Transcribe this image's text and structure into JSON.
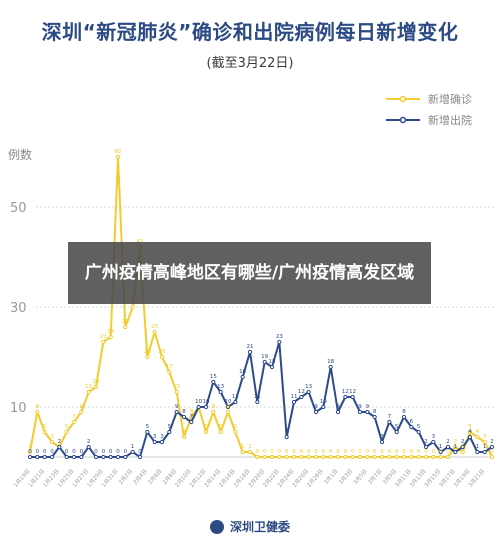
{
  "chart_data": {
    "type": "line",
    "title": "深圳“新冠肺炎”确诊和出院病例每日新增变化",
    "subtitle": "(截至3月22日)",
    "ylabel": "例数",
    "ylim": [
      0,
      65
    ],
    "yticks": [
      10,
      30,
      50
    ],
    "x": [
      "1月19日",
      "1月20日",
      "1月21日",
      "1月22日",
      "1月23日",
      "1月24日",
      "1月25日",
      "1月26日",
      "1月27日",
      "1月28日",
      "1月29日",
      "1月30日",
      "1月31日",
      "2月1日",
      "2月2日",
      "2月3日",
      "2月4日",
      "2月5日",
      "2月6日",
      "2月7日",
      "2月8日",
      "2月9日",
      "2月10日",
      "2月11日",
      "2月12日",
      "2月13日",
      "2月14日",
      "2月15日",
      "2月16日",
      "2月17日",
      "2月18日",
      "2月19日",
      "2月20日",
      "2月21日",
      "2月22日",
      "2月23日",
      "2月24日",
      "2月25日",
      "2月26日",
      "2月27日",
      "2月28日",
      "2月29日",
      "3月1日",
      "3月2日",
      "3月3日",
      "3月4日",
      "3月5日",
      "3月6日",
      "3月7日",
      "3月8日",
      "3月9日",
      "3月10日",
      "3月11日",
      "3月12日",
      "3月13日",
      "3月14日",
      "3月15日",
      "3月16日",
      "3月17日",
      "3月18日",
      "3月19日",
      "3月20日",
      "3月21日",
      "3月22日"
    ],
    "series": [
      {
        "name": "新增确诊",
        "color": "#f2cc2e",
        "values": [
          1,
          9,
          5,
          3,
          2,
          5,
          7,
          9,
          13,
          14,
          23,
          24,
          60,
          26,
          30,
          42,
          20,
          25,
          20,
          17,
          13,
          4,
          8,
          10,
          5,
          9,
          5,
          9,
          5,
          1,
          1,
          0,
          0,
          0,
          0,
          0,
          0,
          0,
          0,
          0,
          0,
          0,
          0,
          0,
          0,
          0,
          0,
          0,
          0,
          0,
          0,
          0,
          0,
          0,
          0,
          0,
          0,
          0,
          2,
          1,
          5,
          4,
          3,
          0
        ]
      },
      {
        "name": "新增出院",
        "color": "#2c4a8c",
        "values": [
          0,
          0,
          0,
          0,
          2,
          0,
          0,
          0,
          2,
          0,
          0,
          0,
          0,
          0,
          1,
          0,
          5,
          3,
          3,
          5,
          9,
          8,
          7,
          10,
          10,
          15,
          13,
          10,
          11,
          16,
          21,
          11,
          19,
          18,
          23,
          4,
          11,
          12,
          13,
          9,
          10,
          18,
          9,
          12,
          12,
          9,
          9,
          8,
          3,
          7,
          5,
          8,
          6,
          5,
          2,
          3,
          1,
          2,
          1,
          2,
          4,
          1,
          1,
          2
        ]
      }
    ]
  },
  "footer": {
    "source": "深圳卫健委"
  },
  "banner": {
    "text": "广州疫情高峰地区有哪些/广州疫情高发区域"
  }
}
